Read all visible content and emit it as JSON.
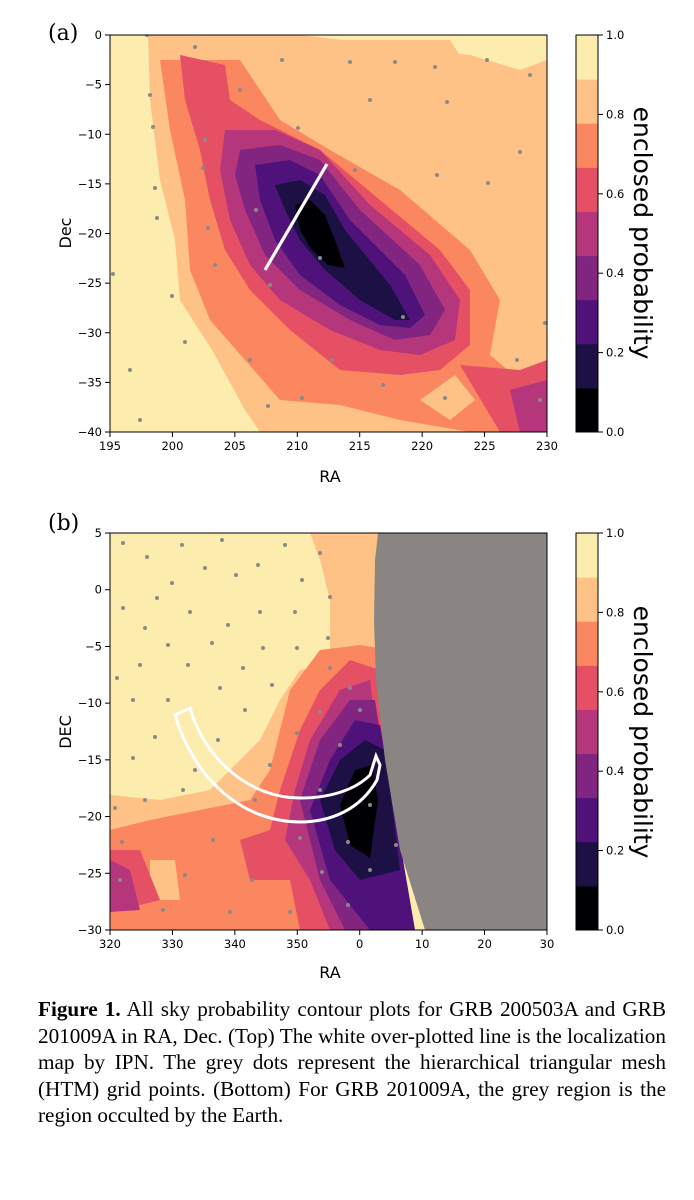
{
  "panels": [
    {
      "label": "(a)",
      "xlabel": "RA",
      "ylabel": "Dec",
      "xticks": [
        "195",
        "200",
        "205",
        "210",
        "215",
        "220",
        "225",
        "230"
      ],
      "yticks": [
        "0",
        "−5",
        "−10",
        "−15",
        "−20",
        "−25",
        "−30",
        "−35",
        "−40"
      ],
      "colorbar_label": "enclosed probability",
      "colorbar_ticks": [
        "1.0",
        "0.8",
        "0.6",
        "0.4",
        "0.2",
        "0.0"
      ]
    },
    {
      "label": "(b)",
      "xlabel": "RA",
      "ylabel": "DEC",
      "xticks": [
        "320",
        "330",
        "340",
        "350",
        "0",
        "10",
        "20",
        "30"
      ],
      "yticks": [
        "5",
        "0",
        "−5",
        "−10",
        "−15",
        "−20",
        "−25",
        "−30"
      ],
      "colorbar_label": "enclosed probability",
      "colorbar_ticks": [
        "1.0",
        "0.8",
        "0.6",
        "0.4",
        "0.2",
        "0.0"
      ]
    }
  ],
  "colormap": [
    "#000004",
    "#1c1044",
    "#4f127b",
    "#812581",
    "#b5367a",
    "#e55064",
    "#fb8761",
    "#fec287",
    "#fcecad"
  ],
  "occulted_color": "#8a8583",
  "caption": {
    "label": "Figure 1.",
    "text": " All sky probability contour plots for GRB 200503A and GRB 201009A in RA, Dec. (Top) The white over-plotted line is the localization map by IPN. The grey dots represent the hierarchical triangular mesh (HTM) grid points. (Bottom) For GRB 201009A, the grey region is the region occulted by the Earth."
  }
}
